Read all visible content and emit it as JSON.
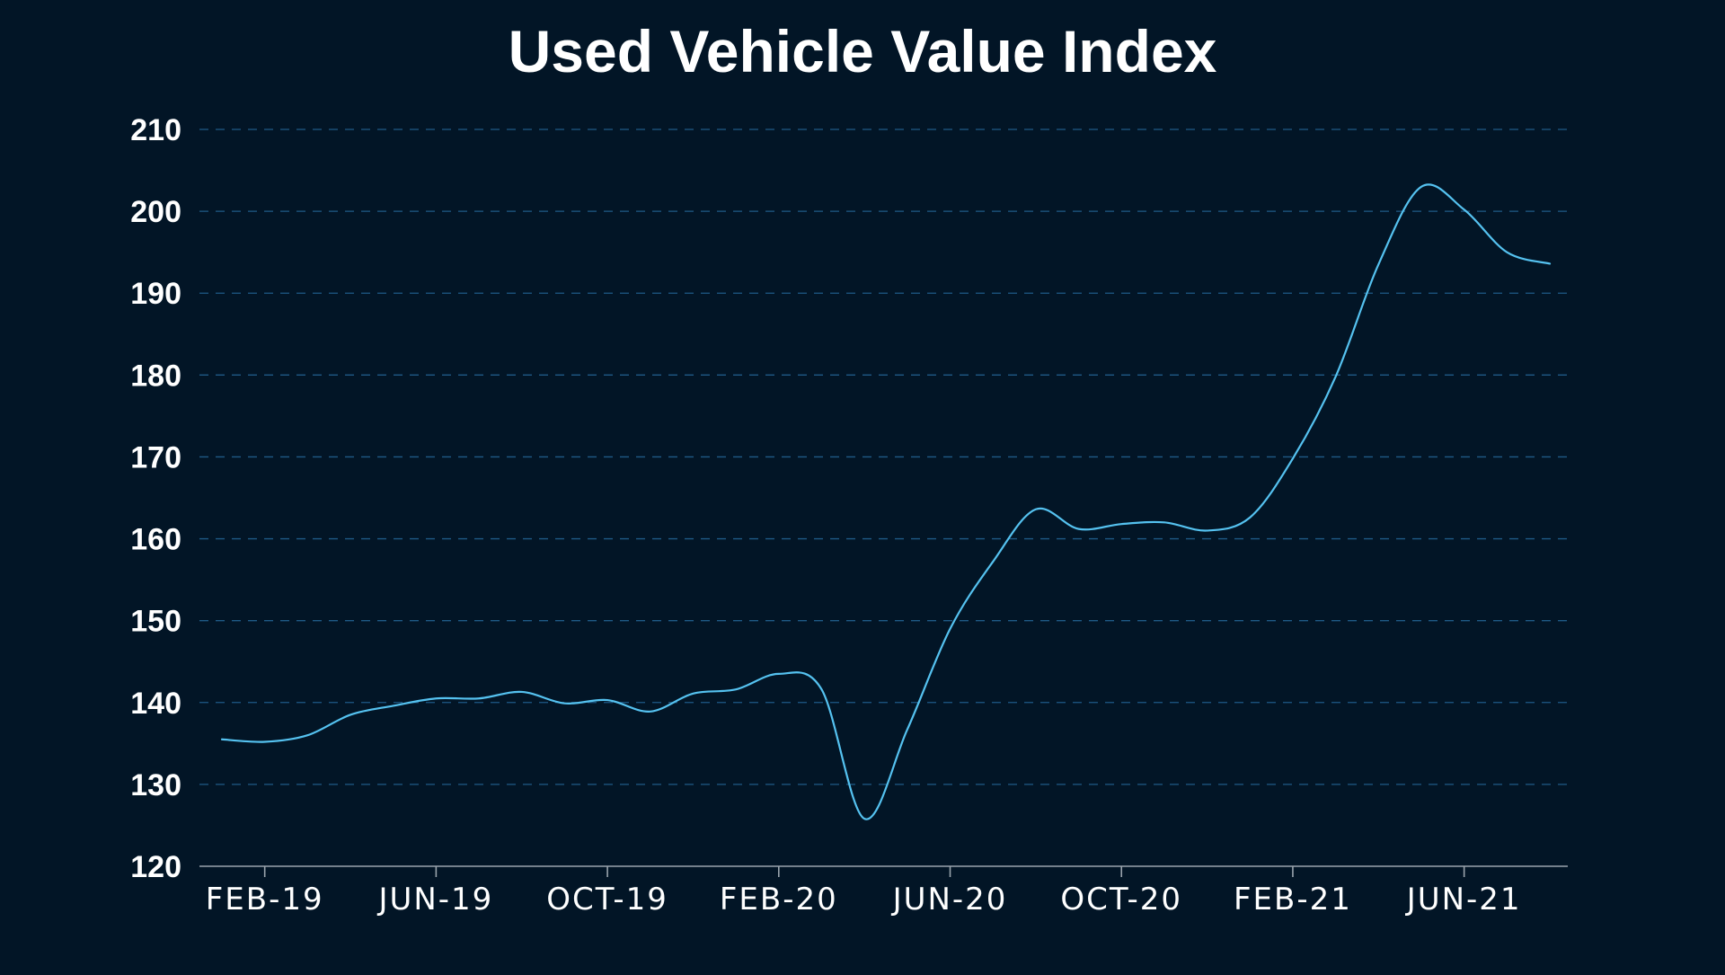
{
  "colors": {
    "background": "#021526",
    "text": "#ffffff",
    "series": "#55c2f0",
    "gridline": "#1f5a86",
    "axis": "#9aa4ad"
  },
  "chart_data": {
    "type": "line",
    "title": "Used Vehicle Value Index",
    "xlabel": "",
    "ylabel": "",
    "ylim": [
      120,
      210
    ],
    "xlim": [
      "2019-01",
      "2021-08"
    ],
    "y_ticks": [
      "120",
      "130",
      "140",
      "150",
      "160",
      "170",
      "180",
      "190",
      "200",
      "210"
    ],
    "x_ticks": [
      {
        "label": "FEB-19",
        "date": "2019-02"
      },
      {
        "label": "JUN-19",
        "date": "2019-06"
      },
      {
        "label": "OCT-19",
        "date": "2019-10"
      },
      {
        "label": "FEB-20",
        "date": "2020-02"
      },
      {
        "label": "JUN-20",
        "date": "2020-06"
      },
      {
        "label": "OCT-20",
        "date": "2020-10"
      },
      {
        "label": "FEB-21",
        "date": "2021-02"
      },
      {
        "label": "JUN-21",
        "date": "2021-06"
      }
    ],
    "grid": true,
    "legend": "none",
    "series": [
      {
        "values": [
          {
            "x": "2019-01",
            "y": 135.5
          },
          {
            "x": "2019-02",
            "y": 135.2
          },
          {
            "x": "2019-03",
            "y": 136.0
          },
          {
            "x": "2019-04",
            "y": 138.5
          },
          {
            "x": "2019-05",
            "y": 139.6
          },
          {
            "x": "2019-06",
            "y": 140.5
          },
          {
            "x": "2019-07",
            "y": 140.5
          },
          {
            "x": "2019-08",
            "y": 141.3
          },
          {
            "x": "2019-09",
            "y": 139.9
          },
          {
            "x": "2019-10",
            "y": 140.3
          },
          {
            "x": "2019-11",
            "y": 138.9
          },
          {
            "x": "2019-12",
            "y": 141.1
          },
          {
            "x": "2020-01",
            "y": 141.6
          },
          {
            "x": "2020-02",
            "y": 143.5
          },
          {
            "x": "2020-03",
            "y": 141.6
          },
          {
            "x": "2020-04",
            "y": 125.8
          },
          {
            "x": "2020-05",
            "y": 136.7
          },
          {
            "x": "2020-06",
            "y": 149.0
          },
          {
            "x": "2020-07",
            "y": 157.2
          },
          {
            "x": "2020-08",
            "y": 163.6
          },
          {
            "x": "2020-09",
            "y": 161.2
          },
          {
            "x": "2020-10",
            "y": 161.8
          },
          {
            "x": "2020-11",
            "y": 162.0
          },
          {
            "x": "2020-12",
            "y": 161.0
          },
          {
            "x": "2021-01",
            "y": 162.6
          },
          {
            "x": "2021-02",
            "y": 169.8
          },
          {
            "x": "2021-03",
            "y": 179.8
          },
          {
            "x": "2021-04",
            "y": 193.5
          },
          {
            "x": "2021-05",
            "y": 203.0
          },
          {
            "x": "2021-06",
            "y": 200.2
          },
          {
            "x": "2021-07",
            "y": 195.0
          },
          {
            "x": "2021-08",
            "y": 193.6
          }
        ]
      }
    ]
  }
}
